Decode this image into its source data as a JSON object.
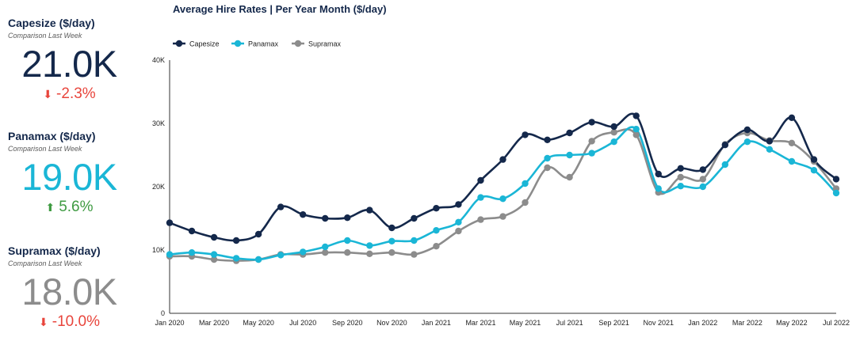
{
  "kpis": [
    {
      "title": "Capesize ($/day)",
      "subtitle": "Comparison Last Week",
      "value": "21.0K",
      "change": "-2.3%",
      "direction": "down",
      "value_color": "#14284b",
      "change_color": "#e8453c"
    },
    {
      "title": "Panamax ($/day)",
      "subtitle": "Comparison Last Week",
      "value": "19.0K",
      "change": "5.6%",
      "direction": "up",
      "value_color": "#1ab6d6",
      "change_color": "#3f9b42"
    },
    {
      "title": "Supramax ($/day)",
      "subtitle": "Comparison Last Week",
      "value": "18.0K",
      "change": "-10.0%",
      "direction": "down",
      "value_color": "#8c8c8c",
      "change_color": "#e8453c"
    }
  ],
  "chart_data": {
    "type": "line",
    "title": "Average Hire Rates | Per Year Month ($/day)",
    "xlabel": "",
    "ylabel": "",
    "ylim": [
      0,
      40000
    ],
    "y_ticks": [
      0,
      10000,
      20000,
      30000,
      40000
    ],
    "y_tick_labels": [
      "0",
      "10K",
      "20K",
      "30K",
      "40K"
    ],
    "x_tick_labels": [
      "Jan 2020",
      "Mar 2020",
      "May 2020",
      "Jul 2020",
      "Sep 2020",
      "Nov 2020",
      "Jan 2021",
      "Mar 2021",
      "May 2021",
      "Jul 2021",
      "Sep 2021",
      "Nov 2021",
      "Jan 2022",
      "Mar 2022",
      "May 2022",
      "Jul 2022"
    ],
    "x": [
      "Jan 2020",
      "Feb 2020",
      "Mar 2020",
      "Apr 2020",
      "May 2020",
      "Jun 2020",
      "Jul 2020",
      "Aug 2020",
      "Sep 2020",
      "Oct 2020",
      "Nov 2020",
      "Dec 2020",
      "Jan 2021",
      "Feb 2021",
      "Mar 2021",
      "Apr 2021",
      "May 2021",
      "Jun 2021",
      "Jul 2021",
      "Aug 2021",
      "Sep 2021",
      "Oct 2021",
      "Nov 2021",
      "Dec 2021",
      "Jan 2022",
      "Feb 2022",
      "Mar 2022",
      "Apr 2022",
      "May 2022",
      "Jun 2022",
      "Jul 2022"
    ],
    "grid": false,
    "legend_position": "top-left",
    "series": [
      {
        "name": "Capesize",
        "color": "#14284b",
        "values": [
          14300,
          13000,
          12000,
          11500,
          12500,
          16800,
          15600,
          15000,
          15100,
          16300,
          13500,
          15000,
          16600,
          17200,
          21000,
          24300,
          28200,
          27400,
          28500,
          30200,
          29500,
          31200,
          22000,
          22900,
          22700,
          26600,
          29000,
          27200,
          30900,
          24300,
          21200
        ]
      },
      {
        "name": "Panamax",
        "color": "#1ab6d6",
        "values": [
          9300,
          9600,
          9300,
          8700,
          8500,
          9200,
          9700,
          10500,
          11500,
          10700,
          11400,
          11500,
          13100,
          14400,
          18300,
          18100,
          20500,
          24500,
          25000,
          25300,
          27100,
          29100,
          19700,
          20100,
          20000,
          23500,
          27100,
          25900,
          24000,
          22600,
          19000
        ]
      },
      {
        "name": "Supramax",
        "color": "#8c8c8c",
        "values": [
          9000,
          9000,
          8500,
          8300,
          8500,
          9300,
          9300,
          9600,
          9600,
          9400,
          9600,
          9300,
          10600,
          13000,
          14800,
          15300,
          17500,
          23000,
          21500,
          27200,
          28600,
          28200,
          19100,
          21500,
          21200,
          26700,
          28500,
          27300,
          26900,
          24000,
          19700
        ]
      }
    ]
  }
}
